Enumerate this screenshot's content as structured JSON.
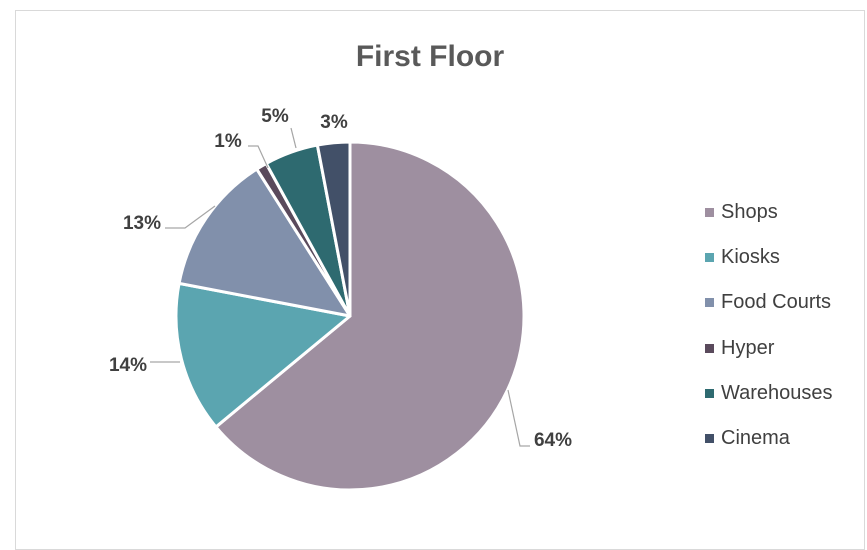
{
  "chart_data": {
    "type": "pie",
    "title": "First Floor",
    "categories": [
      "Shops",
      "Kiosks",
      "Food Courts",
      "Hyper",
      "Warehouses",
      "Cinema"
    ],
    "values": [
      64,
      14,
      13,
      1,
      5,
      3
    ],
    "labels": [
      "64%",
      "14%",
      "13%",
      "1%",
      "5%",
      "3%"
    ],
    "colors": [
      "#9e8fa0",
      "#5ba5b0",
      "#8190ab",
      "#5a4a5c",
      "#2e6a70",
      "#425068"
    ],
    "legend_position": "right"
  }
}
